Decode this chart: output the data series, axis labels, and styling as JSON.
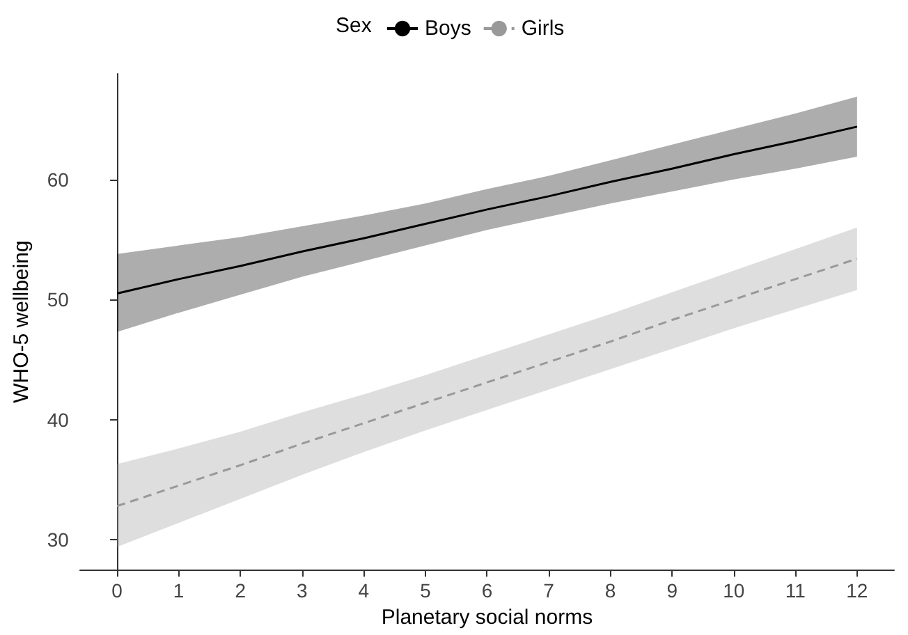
{
  "chart_data": {
    "type": "line",
    "xlabel": "Planetary social norms",
    "ylabel": "WHO-5 wellbeing",
    "legend_title": "Sex",
    "legend": "top",
    "x": [
      0,
      1,
      2,
      3,
      4,
      5,
      6,
      7,
      8,
      9,
      10,
      11,
      12
    ],
    "series": [
      {
        "name": "Boys",
        "color": "#000000",
        "line_style": "solid",
        "values": [
          50.5,
          51.7,
          52.8,
          54.0,
          55.1,
          56.3,
          57.5,
          58.6,
          59.8,
          60.9,
          62.1,
          63.2,
          64.4
        ],
        "lower": [
          47.3,
          48.9,
          50.4,
          51.9,
          53.2,
          54.5,
          55.8,
          56.9,
          58.0,
          59.0,
          60.0,
          60.9,
          61.9
        ],
        "upper": [
          53.8,
          54.5,
          55.2,
          56.1,
          57.0,
          58.0,
          59.2,
          60.3,
          61.6,
          62.9,
          64.2,
          65.5,
          66.9
        ]
      },
      {
        "name": "Girls",
        "color": "#999999",
        "line_style": "dashed",
        "values": [
          32.8,
          34.5,
          36.2,
          38.0,
          39.7,
          41.4,
          43.1,
          44.8,
          46.5,
          48.3,
          50.0,
          51.7,
          53.4
        ],
        "lower": [
          29.4,
          31.4,
          33.4,
          35.4,
          37.3,
          39.1,
          40.8,
          42.5,
          44.2,
          45.9,
          47.6,
          49.2,
          50.8
        ],
        "upper": [
          36.3,
          37.6,
          39.0,
          40.6,
          42.1,
          43.7,
          45.4,
          47.1,
          48.8,
          50.6,
          52.4,
          54.2,
          56.0
        ]
      }
    ],
    "xlim": [
      -0.6,
      12.6
    ],
    "xticks": [
      0,
      1,
      2,
      3,
      4,
      5,
      6,
      7,
      8,
      9,
      10,
      11,
      12
    ],
    "ylim": [
      27.5,
      68.8
    ],
    "yticks": [
      30,
      40,
      50,
      60
    ],
    "grid": false,
    "marker": "none"
  }
}
